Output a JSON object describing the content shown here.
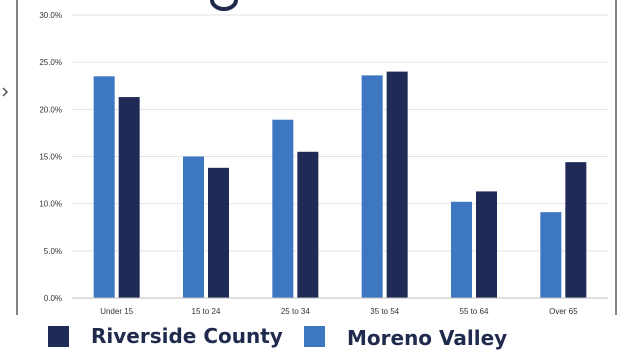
{
  "chart_data": {
    "type": "bar",
    "title": "",
    "xlabel": "",
    "ylabel": "",
    "categories": [
      "Under 15",
      "15 to 24",
      "25 to 34",
      "35 to 54",
      "55 to 64",
      "Over 65"
    ],
    "series": [
      {
        "name": "Moreno Valley",
        "color": "#3e77c1",
        "values": [
          23.5,
          15.0,
          18.9,
          23.6,
          10.2,
          9.1
        ]
      },
      {
        "name": "Riverside County",
        "color": "#1f2a56",
        "values": [
          21.3,
          13.8,
          15.5,
          24.0,
          11.3,
          14.4
        ]
      }
    ],
    "ylim": [
      0,
      30
    ],
    "ytick_values": [
      0,
      5,
      10,
      15,
      20,
      25,
      30
    ],
    "ytick_labels": [
      "0.0%",
      "5.0%",
      "10.0%",
      "15.0%",
      "20.0%",
      "25.0%",
      "30.0%"
    ],
    "grid": true,
    "legend_position": "bottom",
    "legend_order": [
      "Riverside County",
      "Moreno Valley"
    ]
  }
}
